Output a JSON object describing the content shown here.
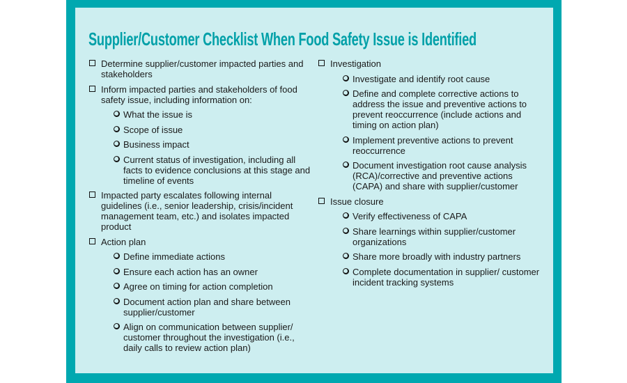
{
  "title": "Supplier/Customer Checklist When Food Safety Issue is Identified",
  "colors": {
    "frame": "#00a8b0",
    "panel": "#cdeef0",
    "title": "#00a0a8"
  },
  "left_column": [
    {
      "text": "Determine supplier/customer impacted parties and stakeholders",
      "subitems": []
    },
    {
      "text": "Inform impacted parties and stakeholders of food safety issue, including information on:",
      "subitems": [
        "What the issue is",
        "Scope of issue",
        "Business impact",
        "Current status of investigation, including all facts to evidence conclusions at this stage and timeline of events"
      ]
    },
    {
      "text": "Impacted party escalates following internal guidelines (i.e., senior leadership, crisis/incident management team, etc.) and isolates impacted product",
      "subitems": []
    },
    {
      "text": "Action plan",
      "subitems": [
        "Define immediate actions",
        "Ensure each action has an owner",
        "Agree on timing for action completion",
        "Document action plan and share between supplier/customer",
        "Align on communication between supplier/ customer throughout the investigation (i.e., daily calls to review action plan)"
      ]
    }
  ],
  "right_column": [
    {
      "text": "Investigation",
      "subitems": [
        "Investigate and identify root cause",
        "Define and complete corrective actions to address the issue and preventive actions to prevent reoccurrence (include actions and timing on action plan)",
        "Implement preventive actions to prevent reoccurrence",
        "Document investigation root cause analysis (RCA)/corrective and preventive actions (CAPA) and share with supplier/customer"
      ]
    },
    {
      "text": "Issue closure",
      "subitems": [
        "Verify effectiveness of CAPA",
        "Share learnings within supplier/customer organizations",
        "Share more broadly with industry partners",
        "Complete documentation in supplier/ customer incident tracking systems"
      ]
    }
  ]
}
